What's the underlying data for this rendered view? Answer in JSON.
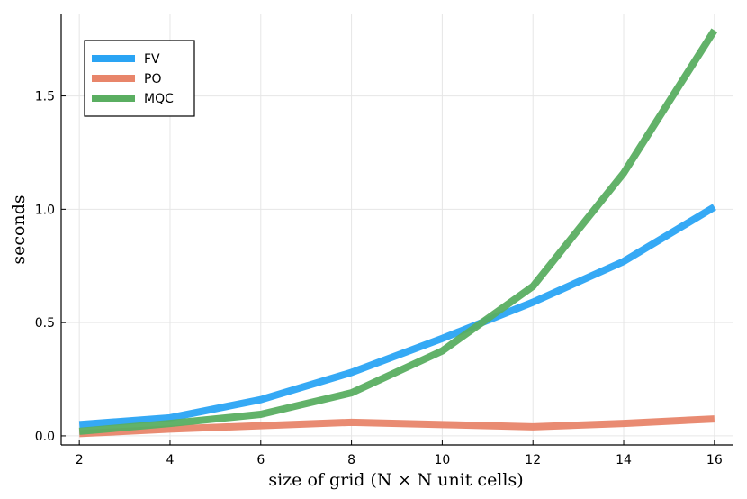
{
  "chart_data": {
    "type": "line",
    "title": "",
    "xlabel": "size of grid (N × N unit cells)",
    "ylabel": "seconds",
    "x": [
      2,
      4,
      6,
      8,
      10,
      12,
      14,
      16
    ],
    "xticks": [
      "2",
      "4",
      "6",
      "8",
      "10",
      "12",
      "14",
      "16"
    ],
    "yticks": [
      "0.0",
      "0.5",
      "1.0",
      "1.5"
    ],
    "xlim": [
      1.6,
      16.4
    ],
    "ylim": [
      -0.04,
      1.86
    ],
    "grid": true,
    "legend_position": "top-left",
    "series": [
      {
        "name": "FV",
        "color": "#2aa4f4",
        "values": [
          0.05,
          0.08,
          0.16,
          0.28,
          0.43,
          0.59,
          0.77,
          1.01
        ]
      },
      {
        "name": "PO",
        "color": "#e8856a",
        "values": [
          0.01,
          0.03,
          0.045,
          0.06,
          0.05,
          0.04,
          0.055,
          0.075
        ]
      },
      {
        "name": "MQC",
        "color": "#5aae61",
        "values": [
          0.02,
          0.055,
          0.095,
          0.19,
          0.375,
          0.66,
          1.16,
          1.79
        ]
      }
    ]
  }
}
